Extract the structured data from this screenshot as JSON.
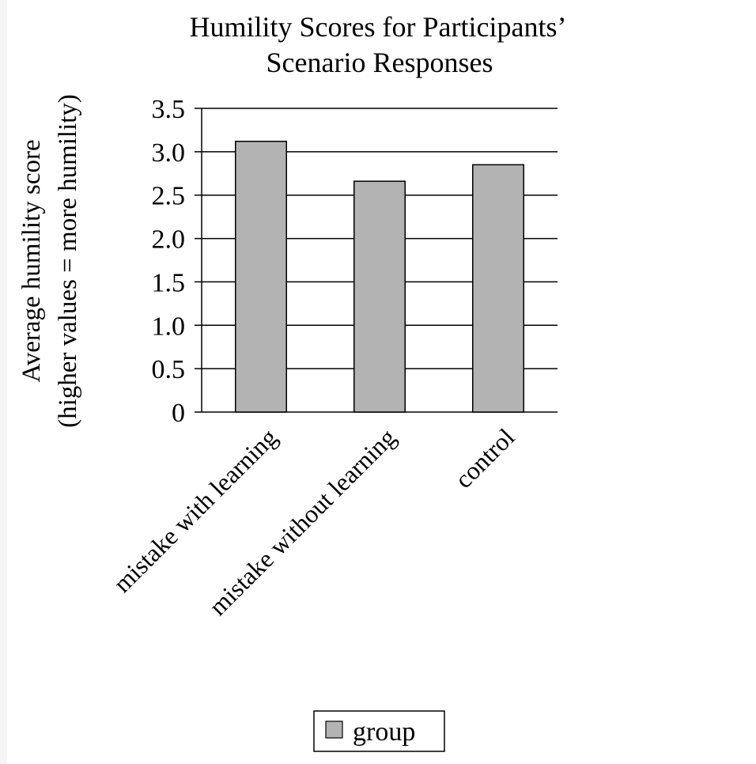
{
  "chart_data": {
    "type": "bar",
    "title": "Humility Scores for Participants’",
    "subtitle": "Scenario Responses",
    "ylabel": "Average humility score",
    "ylabel2": "(higher values = more humility)",
    "xlabel": "",
    "categories": [
      "mistake with learning",
      "mistake without learning",
      "control"
    ],
    "series": [
      {
        "name": "group",
        "values": [
          3.12,
          2.66,
          2.85
        ],
        "color": "#b3b3b3"
      }
    ],
    "ylim": [
      0,
      3.5
    ],
    "yticks": [
      "0",
      "0.5",
      "1.0",
      "1.5",
      "2.0",
      "2.5",
      "3.0",
      "3.5"
    ],
    "grid": true,
    "legend": "bottom-center"
  }
}
